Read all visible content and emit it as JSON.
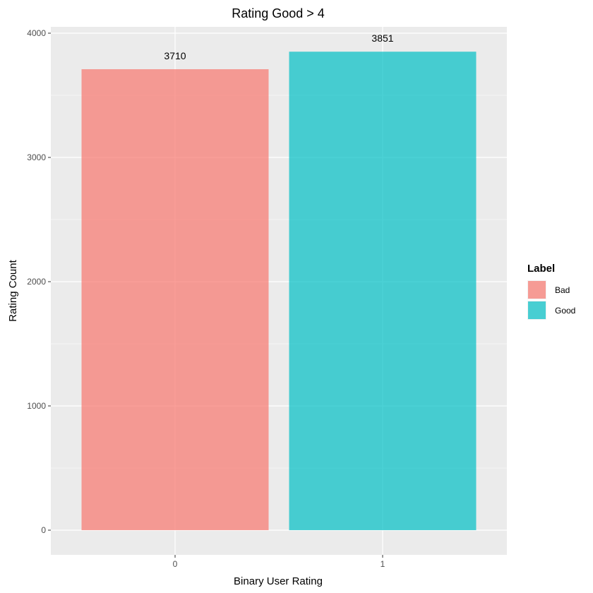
{
  "chart_data": {
    "type": "bar",
    "title": "Rating Good > 4",
    "xlabel": "Binary User Rating",
    "ylabel": "Rating Count",
    "categories": [
      "0",
      "1"
    ],
    "values": [
      3710,
      3851
    ],
    "data_labels": [
      "3710",
      "3851"
    ],
    "bar_colors": [
      "#F8766D",
      "#00BFC4"
    ],
    "bar_opacity": 0.7,
    "ylim": [
      0,
      4000
    ],
    "yticks": [
      0,
      1000,
      2000,
      3000,
      4000
    ],
    "ytick_labels": [
      "0",
      "1000",
      "2000",
      "3000",
      "4000"
    ],
    "grid": true,
    "legend": {
      "title": "Label",
      "position": "right",
      "items": [
        {
          "label": "Bad",
          "color": "#F8766D"
        },
        {
          "label": "Good",
          "color": "#00BFC4"
        }
      ]
    }
  }
}
